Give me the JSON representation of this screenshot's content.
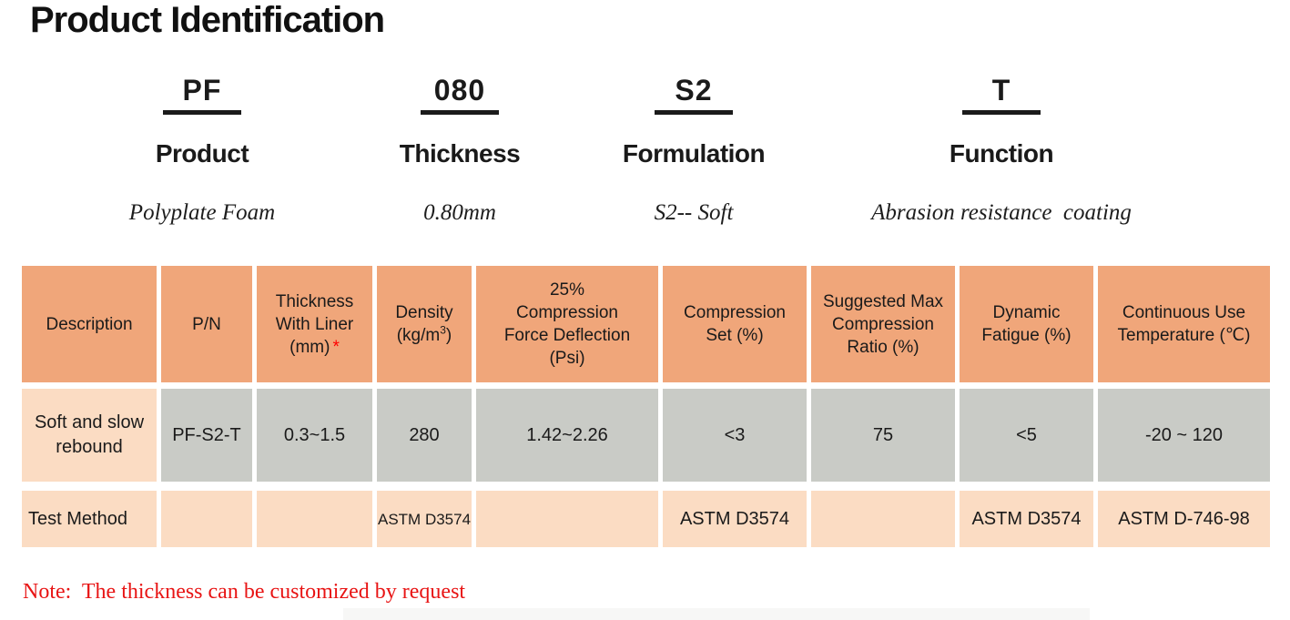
{
  "page_title": "Product Identification",
  "code_breakdown": [
    {
      "code": "PF",
      "label": "Product",
      "description": "Polyplate Foam"
    },
    {
      "code": "080",
      "label": "Thickness",
      "description": "0.80mm"
    },
    {
      "code": "S2",
      "label": "Formulation",
      "description": "S2-- Soft"
    },
    {
      "code": "T",
      "label": "Function",
      "description": "Abrasion resistance  coating"
    }
  ],
  "spec_table": {
    "headers": {
      "description": "Description",
      "part_number": "P/N",
      "thickness_lines": [
        "Thickness",
        "With Liner",
        "(mm)"
      ],
      "thickness_footnote_marker": "*",
      "density_line1": "Density",
      "density_prefix": "(kg/m",
      "density_superscript": "3",
      "density_suffix": ")",
      "cfd_lines": [
        "25%",
        "Compression",
        "Force Deflection",
        "(Psi)"
      ],
      "compression_set_lines": [
        "Compression",
        "Set (%)"
      ],
      "suggested_max_lines": [
        "Suggested Max",
        "Compression",
        "Ratio (%)"
      ],
      "dynamic_fatigue_lines": [
        "Dynamic",
        "Fatigue (%)"
      ],
      "continuous_use_lines": [
        "Continuous Use",
        "Temperature (℃)"
      ]
    },
    "data_row": {
      "description": "Soft and slow rebound",
      "part_number": "PF-S2-T",
      "thickness": "0.3~1.5",
      "density": "280",
      "cfd": "1.42~2.26",
      "compression_set": "<3",
      "suggested_max": "75",
      "dynamic_fatigue": "<5",
      "continuous_use": "-20 ~ 120"
    },
    "test_method_row": {
      "label": "Test Method",
      "density": "ASTM D3574",
      "compression_set": "ASTM D3574",
      "dynamic_fatigue": "ASTM D3574",
      "continuous_use": "ASTM D-746-98"
    }
  },
  "note": "Note:  The thickness can be customized by request",
  "colors": {
    "header_bg": "#F0A67A",
    "data_bg": "#C9CBC6",
    "peach_bg": "#FBDCC3",
    "note_red": "#E81414",
    "asterisk_red": "#FF0000",
    "text": "#1A1A1A"
  }
}
